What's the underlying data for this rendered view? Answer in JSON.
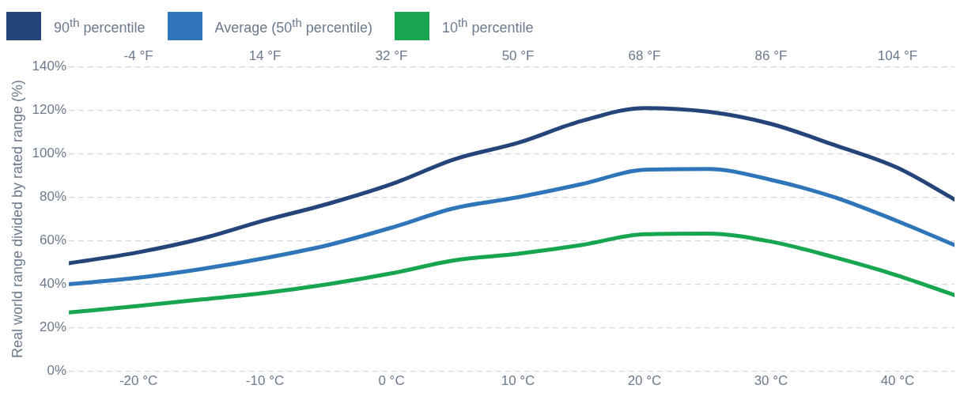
{
  "chart_data": {
    "type": "line",
    "ylabel": "Real world range divided by rated range (%)",
    "x": [
      -25.5,
      -20,
      -15,
      -10,
      -5,
      0,
      5,
      10,
      15,
      20,
      25,
      30,
      35,
      40,
      44.5
    ],
    "xlim": [
      -25.5,
      44.5
    ],
    "xticks": [
      {
        "value": -20,
        "label": "-20 °C"
      },
      {
        "value": -10,
        "label": "-10 °C"
      },
      {
        "value": 0,
        "label": "0 °C"
      },
      {
        "value": 10,
        "label": "10 °C"
      },
      {
        "value": 20,
        "label": "20 °C"
      },
      {
        "value": 30,
        "label": "30 °C"
      },
      {
        "value": 40,
        "label": "40 °C"
      }
    ],
    "x2lim": [
      -13.9,
      112.1
    ],
    "x2ticks": [
      {
        "value": -4,
        "label": "-4 °F"
      },
      {
        "value": 14,
        "label": "14 °F"
      },
      {
        "value": 32,
        "label": "32 °F"
      },
      {
        "value": 50,
        "label": "50 °F"
      },
      {
        "value": 68,
        "label": "68 °F"
      },
      {
        "value": 86,
        "label": "86 °F"
      },
      {
        "value": 104,
        "label": "104 °F"
      }
    ],
    "ylim": [
      0,
      140
    ],
    "yticks": [
      {
        "value": 0,
        "label": "0%"
      },
      {
        "value": 20,
        "label": "20%"
      },
      {
        "value": 40,
        "label": "40%"
      },
      {
        "value": 60,
        "label": "60%"
      },
      {
        "value": 80,
        "label": "80%"
      },
      {
        "value": 100,
        "label": "100%"
      },
      {
        "value": 120,
        "label": "120%"
      },
      {
        "value": 140,
        "label": "140%"
      }
    ],
    "grid": "y",
    "legend": "top left",
    "marker": "none",
    "line_style": "solid",
    "series": [
      {
        "name": "90$^{th}$ percentile",
        "color": "#25457a",
        "values": [
          49.6,
          54.7,
          61,
          69.4,
          77,
          86,
          97.5,
          105,
          115,
          121,
          119.3,
          113.7,
          104,
          93.5,
          79
        ]
      },
      {
        "name": "Average (50$^{th}$ percentile)",
        "color": "#2e75b9",
        "values": [
          40,
          43,
          47,
          52,
          58,
          66,
          75,
          80,
          86,
          92.6,
          93,
          88,
          80,
          69,
          58
        ]
      },
      {
        "name": "10$^{th}$ percentile",
        "color": "#17a550",
        "values": [
          27,
          30,
          33,
          36,
          40,
          45,
          51,
          54,
          58,
          63,
          63.3,
          59.6,
          52.4,
          44,
          35
        ]
      }
    ]
  }
}
